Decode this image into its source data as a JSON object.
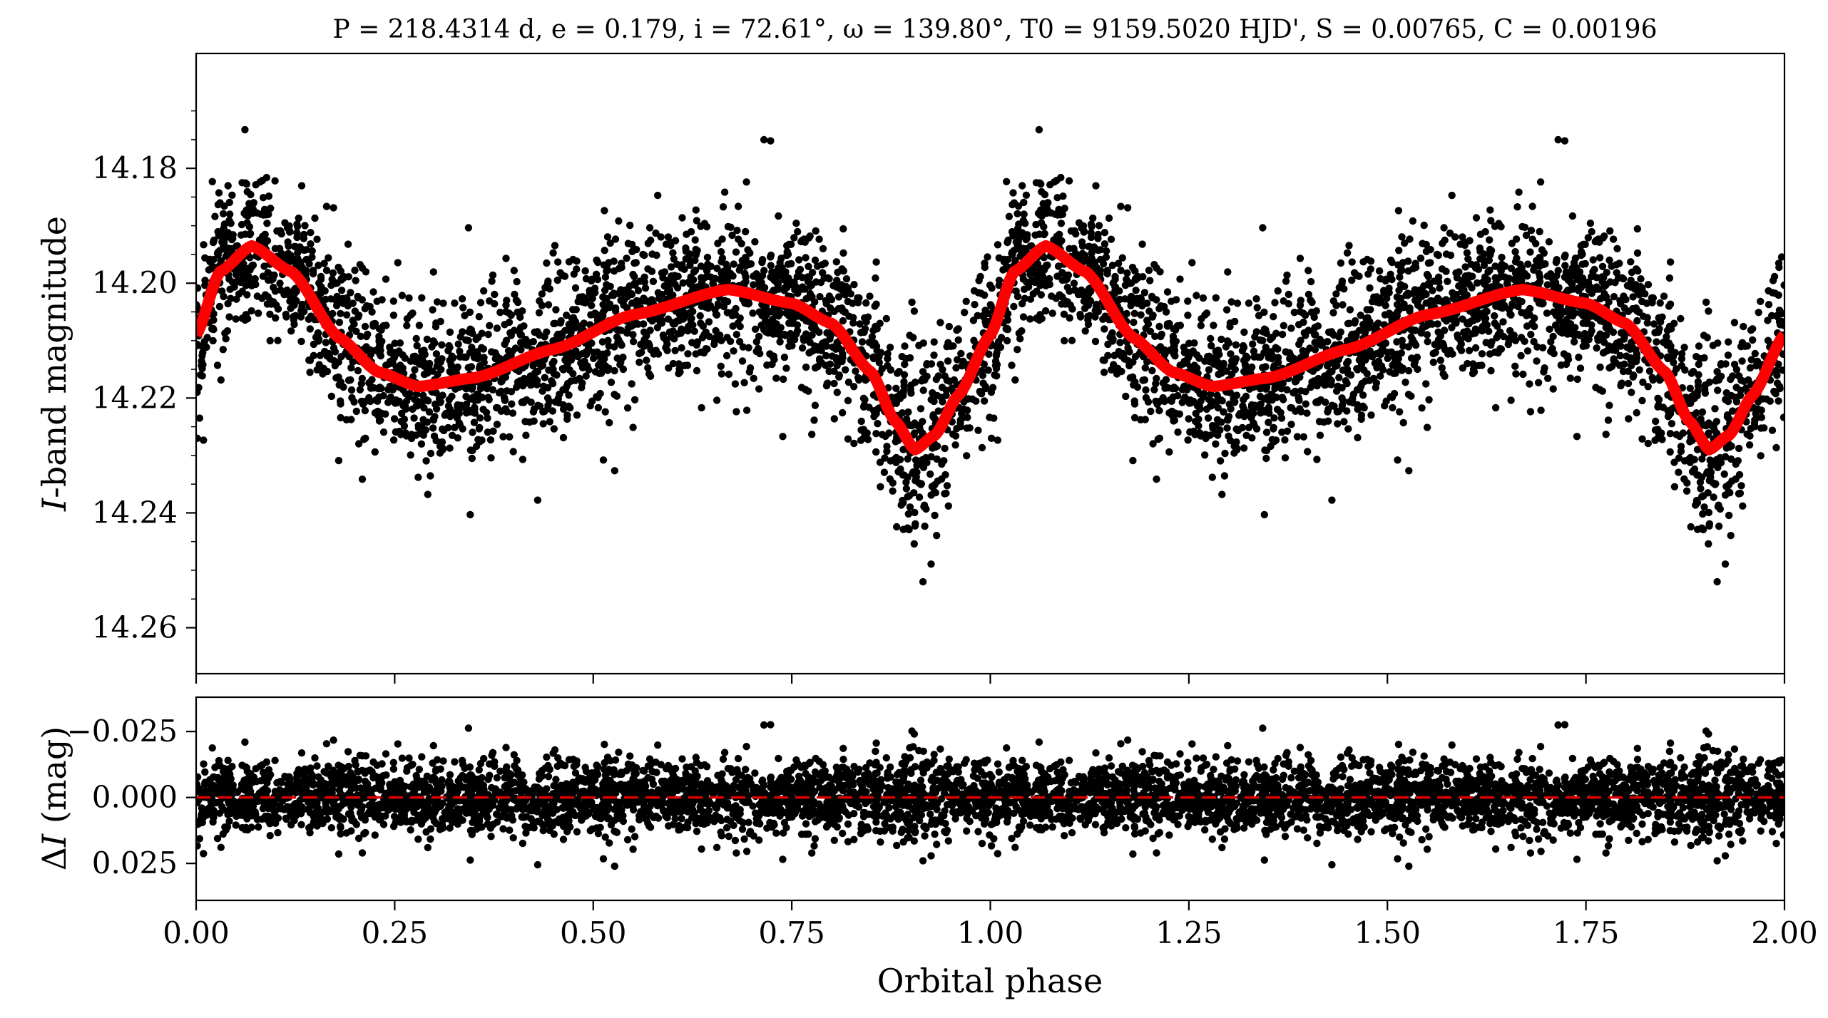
{
  "figure": {
    "title": "P = 218.4314 d, e = 0.179, i = 72.61°, ω = 139.80°, T0 = 9159.5020 HJD', S = 0.00765, C = 0.00196"
  },
  "chart_data": [
    {
      "type": "scatter",
      "panel": "top",
      "xlim": [
        0.0,
        2.0
      ],
      "ylim": [
        14.268,
        14.16
      ],
      "y_inverted": true,
      "grid": false,
      "ylabel": "I-band magnitude",
      "xticks": [
        0.0,
        0.25,
        0.5,
        0.75,
        1.0,
        1.25,
        1.5,
        1.75,
        2.0
      ],
      "yticks": [
        14.18,
        14.2,
        14.22,
        14.24,
        14.26
      ],
      "ytick_labels": [
        "14.18",
        "14.20",
        "14.22",
        "14.24",
        "14.26"
      ],
      "series": [
        {
          "kind": "observations",
          "color": "#000000",
          "description_points": "dense cloud of phased I-band measurements following the model curve with ~0.007 mag scatter",
          "sample_x": [
            0.0,
            0.07,
            0.15,
            0.28,
            0.45,
            0.67,
            0.85,
            0.905,
            0.95,
            1.0,
            1.07,
            1.15,
            1.28,
            1.45,
            1.67,
            1.85,
            1.905,
            1.95,
            2.0
          ],
          "sample_y": [
            14.209,
            14.194,
            14.203,
            14.218,
            14.212,
            14.201,
            14.216,
            14.229,
            14.215,
            14.209,
            14.194,
            14.203,
            14.218,
            14.212,
            14.201,
            14.216,
            14.229,
            14.215,
            14.209
          ]
        },
        {
          "kind": "model",
          "color": "#ff0000",
          "x": [
            0.0,
            0.03,
            0.07,
            0.12,
            0.18,
            0.23,
            0.28,
            0.35,
            0.45,
            0.55,
            0.67,
            0.75,
            0.8,
            0.85,
            0.88,
            0.905,
            0.93,
            0.96,
            1.0,
            1.03,
            1.07,
            1.12,
            1.18,
            1.23,
            1.28,
            1.35,
            1.45,
            1.55,
            1.67,
            1.75,
            1.8,
            1.85,
            1.88,
            1.905,
            1.93,
            1.96,
            2.0
          ],
          "y": [
            14.209,
            14.198,
            14.1935,
            14.198,
            14.2095,
            14.2155,
            14.218,
            14.2165,
            14.2115,
            14.2055,
            14.2011,
            14.2035,
            14.207,
            14.2155,
            14.224,
            14.229,
            14.2265,
            14.2195,
            14.209,
            14.198,
            14.1935,
            14.198,
            14.2095,
            14.2155,
            14.218,
            14.2165,
            14.2115,
            14.2055,
            14.2011,
            14.2035,
            14.207,
            14.2155,
            14.224,
            14.229,
            14.2265,
            14.2195,
            14.209
          ]
        }
      ]
    },
    {
      "type": "scatter",
      "panel": "bottom",
      "xlim": [
        0.0,
        2.0
      ],
      "ylim": [
        0.039,
        -0.038
      ],
      "y_inverted": true,
      "grid": false,
      "xlabel": "Orbital phase",
      "ylabel": "ΔI (mag)",
      "xticks": [
        0.0,
        0.25,
        0.5,
        0.75,
        1.0,
        1.25,
        1.5,
        1.75,
        2.0
      ],
      "xtick_labels": [
        "0.00",
        "0.25",
        "0.50",
        "0.75",
        "1.00",
        "1.25",
        "1.50",
        "1.75",
        "2.00"
      ],
      "yticks": [
        -0.025,
        0.0,
        0.025
      ],
      "ytick_labels": [
        "−0.025",
        "0.000",
        "0.025"
      ],
      "series": [
        {
          "kind": "residuals",
          "color": "#000000",
          "description_points": "residuals scattered around zero with ~0.008 mag spread"
        },
        {
          "kind": "zero-line",
          "color": "#dd0000",
          "style": "dashed",
          "y": 0.0
        }
      ]
    }
  ]
}
